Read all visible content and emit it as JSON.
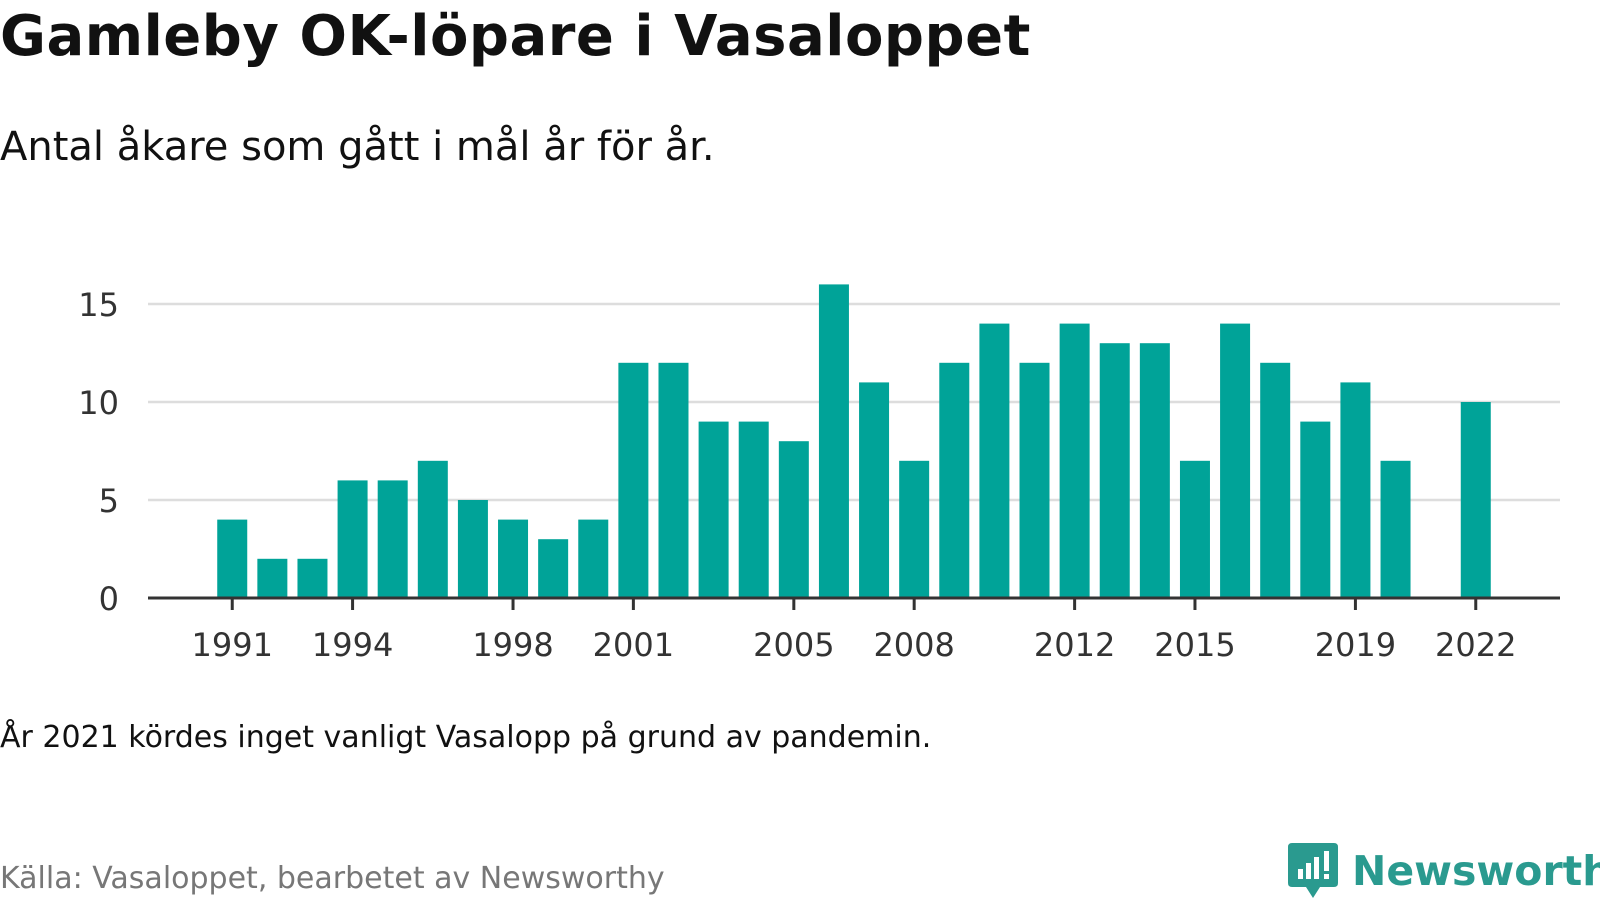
{
  "header": {
    "title": "Gamleby OK-löpare i Vasaloppet",
    "subtitle": "Antal åkare som gått i mål år för år."
  },
  "footer": {
    "note": "År 2021 kördes inget vanligt Vasalopp på grund av pandemin.",
    "source": "Källa: Vasaloppet, bearbetet av Newsworthy",
    "brand": "Newsworthy",
    "brand_color": "#2a9a8f",
    "brand_icon": "bar-chart-exclamation-icon"
  },
  "colors": {
    "bar": "#00a398",
    "grid": "#dddddd",
    "axis": "#333333",
    "tick_text": "#333333"
  },
  "chart_data": {
    "type": "bar",
    "x": [
      1991,
      1992,
      1993,
      1994,
      1995,
      1996,
      1997,
      1998,
      1999,
      2000,
      2001,
      2002,
      2003,
      2004,
      2005,
      2006,
      2007,
      2008,
      2009,
      2010,
      2011,
      2012,
      2013,
      2014,
      2015,
      2016,
      2017,
      2018,
      2019,
      2020,
      2021,
      2022
    ],
    "values": [
      4,
      2,
      2,
      6,
      6,
      7,
      5,
      4,
      3,
      4,
      12,
      12,
      9,
      9,
      8,
      16,
      11,
      7,
      12,
      14,
      12,
      14,
      13,
      13,
      7,
      14,
      12,
      9,
      11,
      7,
      null,
      10
    ],
    "x_tick_labels": [
      "1991",
      "1994",
      "1998",
      "2001",
      "2005",
      "2008",
      "2012",
      "2015",
      "2019",
      "2022"
    ],
    "y_ticks": [
      0,
      5,
      10,
      15
    ],
    "ylim": [
      0,
      16
    ],
    "xlim": [
      1988.9,
      2024.1
    ],
    "grid": true,
    "legend": "none",
    "xlabel": "",
    "ylabel": ""
  }
}
